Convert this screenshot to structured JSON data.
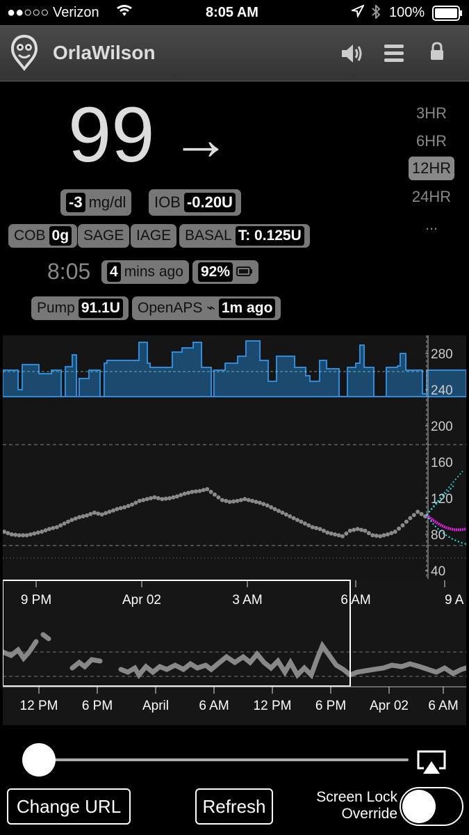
{
  "status_bar": {
    "carrier": "●●○○○ Verizon",
    "time": "8:05 AM",
    "battery": "100%"
  },
  "header": {
    "title": "OrlaWilson"
  },
  "bg": {
    "value": "99",
    "arrow": "→"
  },
  "ranges": [
    "3HR",
    "6HR",
    "12HR",
    "24HR",
    "..."
  ],
  "pills": {
    "delta_value": "-3",
    "delta_unit": "mg/dl",
    "iob_label": "IOB",
    "iob_value": "-0.20U",
    "cob_label": "COB",
    "cob_value": "0g",
    "sage": "SAGE",
    "iage": "IAGE",
    "basal_label": "BASAL",
    "basal_value": "T: 0.125U",
    "time": "8:05",
    "ago_value": "4",
    "ago_label": "mins ago",
    "upbat": "92%",
    "pump_label": "Pump",
    "pump_value": "91.1U",
    "openaps_label": "OpenAPS ⌁",
    "openaps_value": "1m ago"
  },
  "chart_data": {
    "type": "line",
    "y_ticks": [
      "280",
      "240",
      "200",
      "160",
      "120",
      "80",
      "40"
    ],
    "x_ticks_focus": [
      "9 PM",
      "Apr 02",
      "3 AM",
      "6 AM",
      "9 A"
    ],
    "x_ticks_context": [
      "12 PM",
      "6 PM",
      "April",
      "6 AM",
      "12 PM",
      "6 PM",
      "Apr 02",
      "6 AM"
    ],
    "series": [
      {
        "values": [
          83,
          80,
          79,
          79,
          81,
          83,
          86,
          88,
          92,
          96,
          99,
          101,
          104,
          102,
          105,
          108,
          110,
          113,
          117,
          119,
          121,
          119,
          120,
          122,
          125,
          127,
          128,
          130,
          124,
          118,
          116,
          117,
          119,
          117,
          115,
          112,
          108,
          104,
          100,
          96,
          92,
          88,
          86,
          82,
          80,
          78,
          84,
          86,
          84,
          79,
          78,
          80,
          83,
          90,
          98,
          105,
          100
        ]
      }
    ],
    "ylim": [
      40,
      290
    ]
  },
  "controls": {
    "change_url": "Change URL",
    "refresh": "Refresh",
    "screen_lock_line1": "Screen Lock",
    "screen_lock_line2": "Override"
  }
}
